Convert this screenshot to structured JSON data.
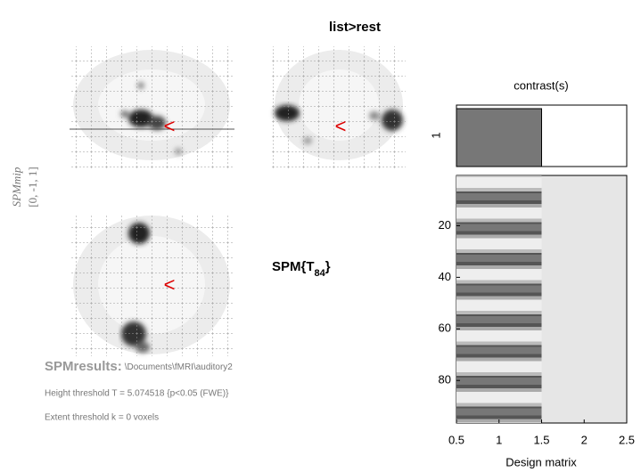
{
  "title": "list>rest",
  "mip_label": {
    "line1": "SPMmip",
    "line2": "[0, -1, 1]"
  },
  "statistic": {
    "prefix": "SPM{T",
    "subscript": "84",
    "suffix": "}"
  },
  "results": {
    "heading": "SPMresults:",
    "path": "\\Documents\\fMRI\\auditory2",
    "height_threshold": "Height threshold T = 5.074518  {p<0.05 (FWE)}",
    "extent_threshold": "Extent threshold k = 0 voxels"
  },
  "design_matrix": {
    "contrast_title": "contrast(s)",
    "contrast_row": "1",
    "contrast": [
      1,
      0
    ],
    "xlabel": "Design matrix",
    "xlim": [
      0.5,
      2.5
    ],
    "xticks": [
      0.5,
      1,
      1.5,
      2,
      2.5
    ],
    "ylim": [
      0.5,
      96.5
    ],
    "yticks": [
      20,
      40,
      60,
      80
    ]
  }
}
